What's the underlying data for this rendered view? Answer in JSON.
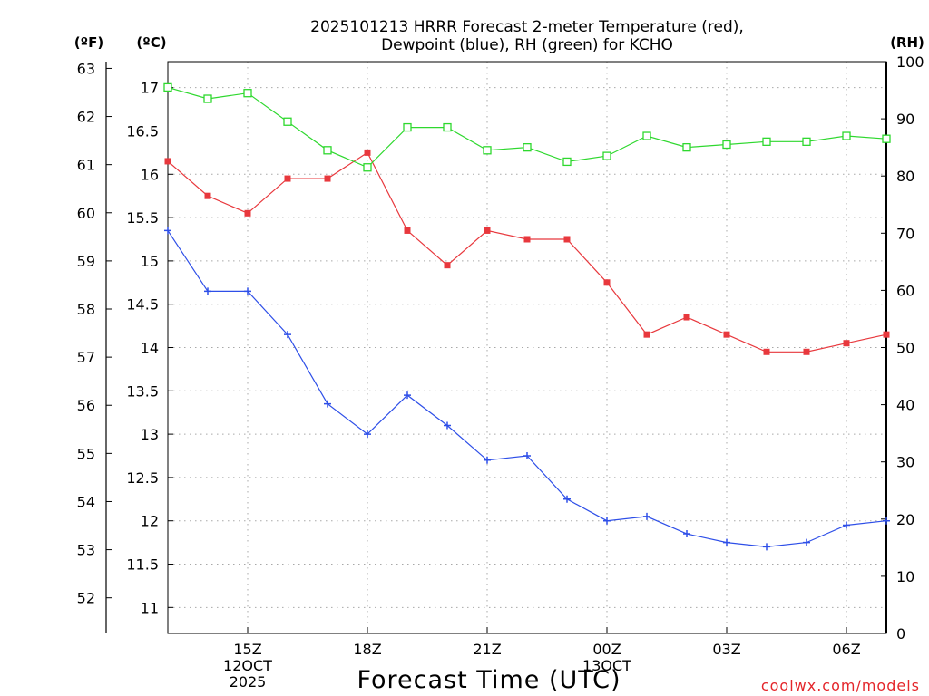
{
  "chart_data": {
    "type": "line",
    "title_lines": [
      "2025101213 HRRR Forecast 2-meter Temperature (red),",
      "Dewpoint (blue), RH (green) for KCHO"
    ],
    "unit_labels": {
      "fahrenheit": "(ºF)",
      "celsius": "(ºC)",
      "rh": "(RH)"
    },
    "xlabel": "Forecast Time (UTC)",
    "credit": "coolwx.com/models",
    "x": [
      13,
      14,
      15,
      16,
      17,
      18,
      19,
      20,
      21,
      22,
      23,
      24,
      25,
      26,
      27,
      28,
      29,
      30,
      31
    ],
    "xlim": [
      13,
      31
    ],
    "x_ticks": [
      {
        "x": 15,
        "lines": [
          "15Z",
          "12OCT",
          "2025"
        ]
      },
      {
        "x": 18,
        "lines": [
          "18Z"
        ]
      },
      {
        "x": 21,
        "lines": [
          "21Z"
        ]
      },
      {
        "x": 24,
        "lines": [
          "00Z",
          "13OCT"
        ]
      },
      {
        "x": 27,
        "lines": [
          "03Z"
        ]
      },
      {
        "x": 30,
        "lines": [
          "06Z"
        ]
      }
    ],
    "celsius_axis": {
      "lim": [
        10.7,
        17.3
      ],
      "ticks": [
        "11",
        "11.5",
        "12",
        "12.5",
        "13",
        "13.5",
        "14",
        "14.5",
        "15",
        "15.5",
        "16",
        "16.5",
        "17"
      ]
    },
    "fahrenheit_axis": {
      "lim": [
        51.26,
        63.14
      ],
      "ticks": [
        "52",
        "53",
        "54",
        "55",
        "56",
        "57",
        "58",
        "59",
        "60",
        "61",
        "62",
        "63"
      ]
    },
    "rh_axis": {
      "lim": [
        0,
        100
      ],
      "ticks": [
        "0",
        "10",
        "20",
        "30",
        "40",
        "50",
        "60",
        "70",
        "80",
        "90",
        "100"
      ]
    },
    "series": [
      {
        "name": "Temperature",
        "axis": "celsius",
        "color": "#e8383d",
        "marker": "filled-square",
        "values": [
          16.15,
          15.75,
          15.55,
          15.95,
          15.95,
          16.25,
          15.35,
          14.95,
          15.35,
          15.25,
          15.25,
          14.75,
          14.15,
          14.35,
          14.15,
          13.95,
          13.95,
          14.05,
          14.15
        ]
      },
      {
        "name": "Dewpoint",
        "axis": "celsius",
        "color": "#2e4fe8",
        "marker": "plus",
        "values": [
          15.35,
          14.65,
          14.65,
          14.15,
          13.35,
          13.0,
          13.45,
          13.1,
          12.7,
          12.75,
          12.25,
          12.0,
          12.05,
          11.85,
          11.75,
          11.7,
          11.75,
          11.95,
          12.0
        ]
      },
      {
        "name": "RH",
        "axis": "rh",
        "color": "#2ed82e",
        "marker": "open-square",
        "values": [
          95.5,
          93.5,
          94.5,
          89.5,
          84.5,
          81.5,
          88.5,
          88.5,
          84.5,
          85.0,
          82.5,
          83.5,
          87.0,
          85.0,
          85.5,
          86.0,
          86.0,
          87.0,
          86.5
        ]
      }
    ]
  }
}
